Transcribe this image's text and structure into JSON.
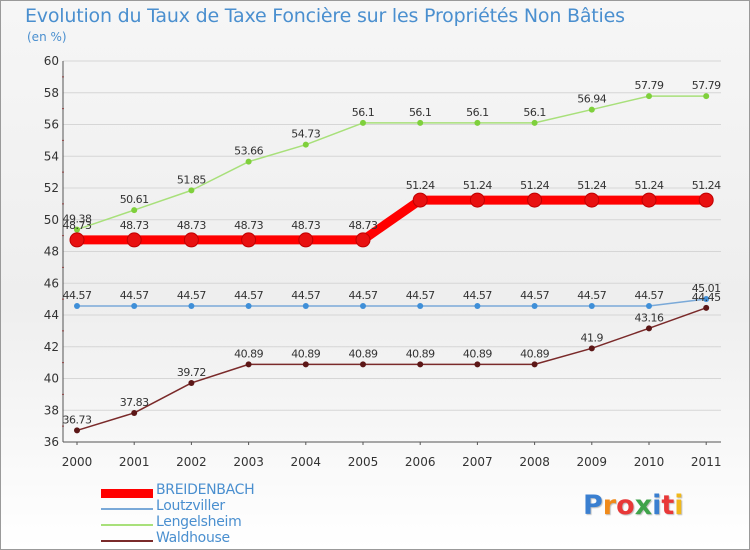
{
  "title": "Evolution du Taux de Taxe Foncière sur les Propriétés Non Bâties",
  "unit": "(en %)",
  "logo_text": "Proxiti",
  "chart_data": {
    "type": "line",
    "title": "Evolution du Taux de Taxe Foncière sur les Propriétés Non Bâties",
    "ylabel": "(en %)",
    "xlabel": "",
    "ylim": [
      36,
      60
    ],
    "yticks": [
      36,
      38,
      40,
      42,
      44,
      46,
      48,
      50,
      52,
      54,
      56,
      58,
      60
    ],
    "grid": "horizontal",
    "legend_position": "bottom-left",
    "categories": [
      "2000",
      "2001",
      "2002",
      "2003",
      "2004",
      "2005",
      "2006",
      "2007",
      "2008",
      "2009",
      "2010",
      "2011"
    ],
    "series": [
      {
        "name": "BREIDENBACH",
        "color": "#ff0000",
        "point_color": "#e81010",
        "emphasis": "thick",
        "values": [
          48.73,
          48.73,
          48.73,
          48.73,
          48.73,
          48.73,
          51.24,
          51.24,
          51.24,
          51.24,
          51.24,
          51.24
        ],
        "labels": [
          "48.73",
          "48.73",
          "48.73",
          "48.73",
          "48.73",
          "48.73",
          "51.24",
          "51.24",
          "51.24",
          "51.24",
          "51.24",
          "51.24"
        ]
      },
      {
        "name": "Loutzviller",
        "color": "#7aa9d8",
        "point_color": "#3f8fd8",
        "emphasis": "normal",
        "values": [
          44.57,
          44.57,
          44.57,
          44.57,
          44.57,
          44.57,
          44.57,
          44.57,
          44.57,
          44.57,
          44.57,
          45.01
        ],
        "labels": [
          "44.57",
          "44.57",
          "44.57",
          "44.57",
          "44.57",
          "44.57",
          "44.57",
          "44.57",
          "44.57",
          "44.57",
          "44.57",
          "45.01"
        ]
      },
      {
        "name": "Lengelsheim",
        "color": "#a8e07a",
        "point_color": "#7fd03c",
        "emphasis": "normal",
        "values": [
          49.38,
          50.61,
          51.85,
          53.66,
          54.73,
          56.1,
          56.1,
          56.1,
          56.1,
          56.94,
          57.79,
          57.79
        ],
        "labels": [
          "49.38",
          "50.61",
          "51.85",
          "53.66",
          "54.73",
          "56.1",
          "56.1",
          "56.1",
          "56.1",
          "56.94",
          "57.79",
          "57.79"
        ]
      },
      {
        "name": "Waldhouse",
        "color": "#7a2a2a",
        "point_color": "#5c1717",
        "emphasis": "normal",
        "values": [
          36.73,
          37.83,
          39.72,
          40.89,
          40.89,
          40.89,
          40.89,
          40.89,
          40.89,
          41.9,
          43.16,
          44.45
        ],
        "labels": [
          "36.73",
          "37.83",
          "39.72",
          "40.89",
          "40.89",
          "40.89",
          "40.89",
          "40.89",
          "40.89",
          "41.9",
          "43.16",
          "44.45"
        ]
      }
    ]
  }
}
